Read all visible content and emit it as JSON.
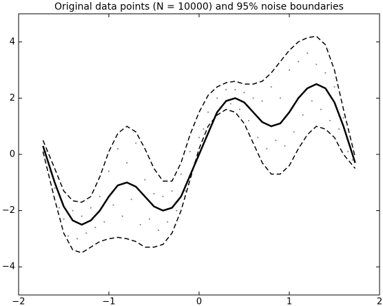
{
  "chart_data": {
    "type": "line",
    "title": "Original data points (N = 10000) and 95% noise boundaries",
    "xlim": [
      -2,
      2
    ],
    "xticks": [
      {
        "value": -2,
        "label": "−2"
      },
      {
        "value": -1,
        "label": "−1"
      },
      0,
      1,
      2
    ],
    "ylim": [
      -5,
      5
    ],
    "yticks": [
      {
        "value": -4,
        "label": "−4"
      },
      {
        "value": -2,
        "label": "−2"
      },
      0,
      2,
      4
    ],
    "grid": false,
    "x": [
      -1.73,
      -1.6,
      -1.5,
      -1.4,
      -1.3,
      -1.2,
      -1.1,
      -1.0,
      -0.9,
      -0.8,
      -0.7,
      -0.6,
      -0.5,
      -0.4,
      -0.3,
      -0.2,
      -0.1,
      0,
      0.1,
      0.2,
      0.3,
      0.4,
      0.5,
      0.6,
      0.7,
      0.8,
      0.9,
      1.0,
      1.1,
      1.2,
      1.3,
      1.4,
      1.5,
      1.6,
      1.73
    ],
    "series": [
      {
        "color": "#000000",
        "dashed": false,
        "width": 2.5,
        "values": [
          0.3,
          -1.0,
          -1.85,
          -2.35,
          -2.5,
          -2.35,
          -2.0,
          -1.5,
          -1.1,
          -1.0,
          -1.15,
          -1.5,
          -1.85,
          -2.0,
          -1.9,
          -1.5,
          -0.75,
          0,
          0.75,
          1.5,
          1.9,
          2.0,
          1.85,
          1.5,
          1.15,
          1.0,
          1.1,
          1.5,
          2.0,
          2.35,
          2.5,
          2.35,
          1.85,
          1.0,
          -0.3
        ]
      },
      {
        "color": "#000000",
        "dashed": true,
        "width": 1.5,
        "values": [
          0.5,
          -0.5,
          -1.3,
          -1.65,
          -1.7,
          -1.5,
          -0.8,
          0.1,
          0.75,
          1.0,
          0.8,
          0.2,
          -0.5,
          -0.95,
          -0.95,
          -0.3,
          0.7,
          1.5,
          2.1,
          2.4,
          2.55,
          2.6,
          2.5,
          2.5,
          2.6,
          2.9,
          3.3,
          3.7,
          4.0,
          4.15,
          4.2,
          3.9,
          3.0,
          1.6,
          -0.1
        ]
      },
      {
        "color": "#000000",
        "dashed": true,
        "width": 1.5,
        "values": [
          0.1,
          -1.6,
          -2.8,
          -3.4,
          -3.5,
          -3.3,
          -3.1,
          -3.0,
          -2.95,
          -3.0,
          -3.1,
          -3.3,
          -3.3,
          -3.2,
          -2.8,
          -2.0,
          -0.9,
          0.2,
          1.0,
          1.4,
          1.6,
          1.5,
          1.1,
          0.4,
          -0.3,
          -0.7,
          -0.7,
          -0.4,
          0.2,
          0.7,
          1.0,
          0.9,
          0.6,
          0.0,
          -0.5
        ]
      }
    ],
    "points": {
      "color": "#8a8a8a",
      "x": [
        -1.7,
        -1.65,
        -1.6,
        -1.55,
        -1.5,
        -1.45,
        -1.4,
        -1.35,
        -1.3,
        -1.25,
        -1.2,
        -1.15,
        -1.1,
        -1.05,
        -1.0,
        -0.95,
        -0.9,
        -0.85,
        -0.8,
        -0.75,
        -0.7,
        -0.65,
        -0.6,
        -0.55,
        -0.5,
        -0.45,
        -0.4,
        -0.35,
        -0.3,
        -0.25,
        -0.2,
        -0.15,
        -0.1,
        -0.05,
        0,
        0.05,
        0.1,
        0.15,
        0.2,
        0.25,
        0.3,
        0.35,
        0.4,
        0.45,
        0.5,
        0.55,
        0.6,
        0.65,
        0.7,
        0.75,
        0.8,
        0.85,
        0.9,
        0.95,
        1.0,
        1.05,
        1.1,
        1.15,
        1.2,
        1.25,
        1.3,
        1.35,
        1.4,
        1.45,
        1.5,
        1.55,
        1.6,
        1.65,
        1.7
      ],
      "y": [
        0.1,
        -0.6,
        -1.2,
        -1.9,
        -2.3,
        -2.9,
        -2.0,
        -3.0,
        -2.2,
        -2.8,
        -1.9,
        -2.6,
        -1.5,
        -2.4,
        -0.6,
        -1.8,
        0.2,
        -2.2,
        -0.3,
        -1.6,
        0.4,
        -2.5,
        -0.9,
        -2.3,
        -1.4,
        -2.7,
        -1.5,
        -2.4,
        -1.3,
        -2.0,
        -0.7,
        -1.3,
        0.1,
        -0.3,
        0.6,
        0.9,
        1.5,
        1.1,
        2.0,
        1.7,
        2.3,
        1.8,
        2.3,
        1.6,
        2.2,
        1.2,
        2.0,
        0.6,
        1.9,
        0.2,
        2.4,
        0.5,
        2.0,
        0.3,
        3.0,
        0.8,
        3.3,
        1.4,
        3.6,
        1.9,
        3.2,
        1.6,
        2.9,
        1.2,
        2.4,
        0.9,
        1.3,
        0.1,
        -0.2
      ]
    }
  }
}
